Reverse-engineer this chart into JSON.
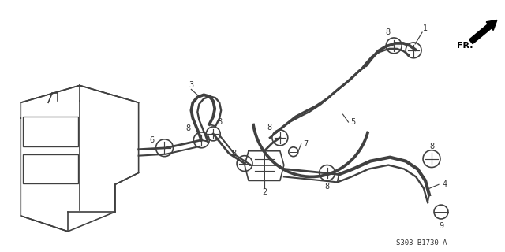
{
  "bg_color": "#ffffff",
  "line_color": "#404040",
  "label_color": "#333333",
  "part_number": "S303-B1730 A",
  "lw": 1.2
}
